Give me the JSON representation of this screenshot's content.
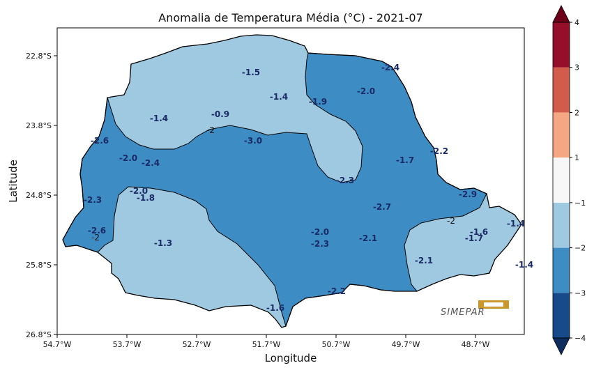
{
  "chart_data": {
    "type": "heatmap",
    "title": "Anomalia de Temperatura Média (°C) - 2021-07",
    "xlabel": "Longitude",
    "ylabel": "Latitude",
    "x_ticks": [
      "54.7°W",
      "53.7°W",
      "52.7°W",
      "51.7°W",
      "50.7°W",
      "49.7°W",
      "48.7°W"
    ],
    "x_tick_values": [
      -54.7,
      -53.7,
      -52.7,
      -51.7,
      -50.7,
      -49.7,
      -48.7
    ],
    "y_ticks": [
      "22.8°S",
      "23.8°S",
      "24.8°S",
      "25.8°S",
      "26.8°S"
    ],
    "y_tick_values": [
      -22.8,
      -23.8,
      -24.8,
      -25.8,
      -26.8
    ],
    "xlim": [
      -54.7,
      -48.0
    ],
    "ylim": [
      -26.8,
      -22.4
    ],
    "colorbar": {
      "boundaries": [
        -4,
        -3,
        -2,
        -1,
        1,
        2,
        3,
        4
      ],
      "tick_labels": [
        "−4",
        "−3",
        "−2",
        "−1",
        "1",
        "2",
        "3",
        "4"
      ],
      "colors": [
        "#174a8a",
        "#3d8dc4",
        "#9ec9e0",
        "#f7f7f7",
        "#f5a683",
        "#d15c4b",
        "#950f2a"
      ],
      "extend_low_color": "#0e2d5e",
      "extend_high_color": "#6b0018"
    },
    "region_colors": {
      "light": "#9ec9e0",
      "medium": "#3d8dc4",
      "outline": "#000000"
    },
    "contour_labels": [
      {
        "text": "-2",
        "lon": -52.5,
        "lat": -23.87
      },
      {
        "text": "-2",
        "lon": -54.15,
        "lat": -25.41
      },
      {
        "text": "-2",
        "lon": -49.05,
        "lat": -25.17
      }
    ],
    "station_values": [
      {
        "value": -1.5,
        "lon": -51.92,
        "lat": -23.04
      },
      {
        "value": -2.4,
        "lon": -49.92,
        "lat": -22.97
      },
      {
        "value": -1.4,
        "lon": -51.52,
        "lat": -23.39
      },
      {
        "value": -1.9,
        "lon": -50.96,
        "lat": -23.46
      },
      {
        "value": -2.0,
        "lon": -50.27,
        "lat": -23.31
      },
      {
        "value": -1.4,
        "lon": -53.24,
        "lat": -23.7
      },
      {
        "value": -0.9,
        "lon": -52.36,
        "lat": -23.64
      },
      {
        "value": -3.0,
        "lon": -51.89,
        "lat": -24.02
      },
      {
        "value": -2.6,
        "lon": -54.09,
        "lat": -24.02
      },
      {
        "value": -2.0,
        "lon": -53.68,
        "lat": -24.27
      },
      {
        "value": -2.4,
        "lon": -53.36,
        "lat": -24.34
      },
      {
        "value": -1.7,
        "lon": -49.71,
        "lat": -24.3
      },
      {
        "value": -2.2,
        "lon": -49.22,
        "lat": -24.17
      },
      {
        "value": -2.3,
        "lon": -50.57,
        "lat": -24.59
      },
      {
        "value": -2.0,
        "lon": -53.53,
        "lat": -24.74
      },
      {
        "value": -1.8,
        "lon": -53.43,
        "lat": -24.84
      },
      {
        "value": -2.3,
        "lon": -54.19,
        "lat": -24.87
      },
      {
        "value": -2.9,
        "lon": -48.81,
        "lat": -24.79
      },
      {
        "value": -2.7,
        "lon": -50.04,
        "lat": -24.97
      },
      {
        "value": -2.6,
        "lon": -54.13,
        "lat": -25.31
      },
      {
        "value": -2.0,
        "lon": -50.93,
        "lat": -25.33
      },
      {
        "value": -1.3,
        "lon": -53.18,
        "lat": -25.49
      },
      {
        "value": -2.3,
        "lon": -50.93,
        "lat": -25.5
      },
      {
        "value": -2.1,
        "lon": -50.24,
        "lat": -25.42
      },
      {
        "value": -1.6,
        "lon": -48.65,
        "lat": -25.33
      },
      {
        "value": -1.7,
        "lon": -48.72,
        "lat": -25.42
      },
      {
        "value": -1.4,
        "lon": -48.12,
        "lat": -25.21
      },
      {
        "value": -2.1,
        "lon": -49.44,
        "lat": -25.74
      },
      {
        "value": -1.4,
        "lon": -48.0,
        "lat": -25.8
      },
      {
        "value": -2.2,
        "lon": -50.69,
        "lat": -26.18
      },
      {
        "value": -1.6,
        "lon": -51.57,
        "lat": -26.42
      }
    ],
    "grid": false,
    "legend": "colorbar-right"
  },
  "logo": {
    "text": "SIMEPAR",
    "color": "#c8962a"
  }
}
